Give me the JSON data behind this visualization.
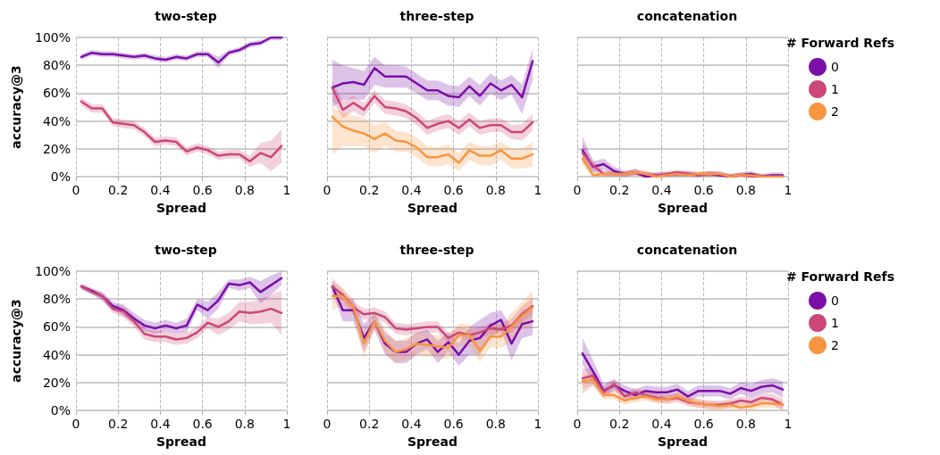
{
  "chart_data": [
    {
      "type": "line",
      "title": "two-step",
      "xlabel": "Spread",
      "ylabel": "accuracy@3",
      "xlim": [
        0,
        1
      ],
      "xticks": [
        0,
        0.2,
        0.4,
        0.6,
        0.8,
        1
      ],
      "ylim": [
        0,
        100
      ],
      "yticks": [
        {
          "value": 0,
          "label": "0%"
        },
        {
          "value": 20,
          "label": "20%"
        },
        {
          "value": 40,
          "label": "40%"
        },
        {
          "value": 60,
          "label": "60%"
        },
        {
          "value": 80,
          "label": "80%"
        },
        {
          "value": 100,
          "label": "100%"
        }
      ],
      "grid": true,
      "x": [
        0.025,
        0.075,
        0.125,
        0.175,
        0.225,
        0.275,
        0.325,
        0.375,
        0.425,
        0.475,
        0.525,
        0.575,
        0.625,
        0.675,
        0.725,
        0.775,
        0.825,
        0.875,
        0.925,
        0.975
      ],
      "series": [
        {
          "color": "#7b0fa8",
          "values": [
            86,
            89,
            88,
            88,
            87,
            86,
            87,
            85,
            84,
            86,
            85,
            88,
            88,
            82,
            89,
            91,
            95,
            96,
            100,
            100
          ],
          "upper": [
            88,
            91,
            90,
            90,
            89,
            88,
            89,
            87,
            86,
            88,
            87,
            90,
            90,
            86,
            91,
            93,
            97,
            98,
            100,
            100
          ],
          "lower": [
            84,
            87,
            86,
            86,
            85,
            84,
            85,
            83,
            82,
            84,
            83,
            86,
            86,
            78,
            87,
            89,
            93,
            94,
            98,
            98
          ]
        },
        {
          "color": "#cc4778",
          "values": [
            54,
            49,
            49,
            39,
            38,
            37,
            32,
            25,
            26,
            25,
            18,
            21,
            19,
            15,
            16,
            16,
            11,
            17,
            14,
            22
          ],
          "upper": [
            57,
            52,
            52,
            42,
            41,
            40,
            35,
            28,
            29,
            28,
            21,
            24,
            22,
            18,
            19,
            19,
            15,
            24,
            26,
            34
          ],
          "lower": [
            51,
            46,
            46,
            36,
            35,
            34,
            29,
            22,
            23,
            22,
            15,
            18,
            16,
            12,
            13,
            13,
            7,
            10,
            4,
            10
          ]
        }
      ]
    },
    {
      "type": "line",
      "title": "three-step",
      "xlabel": "Spread",
      "xlim": [
        0,
        1
      ],
      "xticks": [
        0,
        0.2,
        0.4,
        0.6,
        0.8,
        1
      ],
      "ylim": [
        0,
        100
      ],
      "yticks": [
        0,
        20,
        40,
        60,
        80,
        100
      ],
      "tick_labels": "x",
      "grid": true,
      "x": [
        0.025,
        0.075,
        0.125,
        0.175,
        0.225,
        0.275,
        0.325,
        0.375,
        0.425,
        0.475,
        0.525,
        0.575,
        0.625,
        0.675,
        0.725,
        0.775,
        0.825,
        0.875,
        0.925,
        0.975
      ],
      "series": [
        {
          "color": "#7b0fa8",
          "values": [
            64,
            67,
            68,
            66,
            78,
            72,
            72,
            72,
            67,
            62,
            62,
            58,
            57,
            65,
            58,
            67,
            62,
            66,
            57,
            83
          ],
          "upper": [
            84,
            80,
            78,
            76,
            86,
            80,
            80,
            79,
            74,
            69,
            69,
            66,
            65,
            72,
            66,
            74,
            69,
            73,
            66,
            92
          ],
          "lower": [
            50,
            55,
            56,
            55,
            66,
            64,
            64,
            64,
            60,
            55,
            55,
            51,
            50,
            58,
            51,
            60,
            55,
            59,
            45,
            69
          ]
        },
        {
          "color": "#cc4778",
          "values": [
            64,
            48,
            53,
            48,
            58,
            50,
            49,
            47,
            42,
            35,
            38,
            40,
            35,
            41,
            35,
            37,
            37,
            32,
            32,
            39
          ],
          "upper": [
            69,
            54,
            58,
            53,
            62,
            55,
            54,
            52,
            47,
            40,
            43,
            45,
            40,
            46,
            40,
            42,
            42,
            37,
            38,
            45
          ],
          "lower": [
            55,
            42,
            47,
            43,
            53,
            45,
            44,
            42,
            37,
            30,
            33,
            35,
            30,
            36,
            30,
            32,
            32,
            27,
            26,
            33
          ]
        },
        {
          "color": "#f89540",
          "values": [
            43,
            36,
            33,
            31,
            27,
            31,
            26,
            25,
            21,
            14,
            14,
            16,
            10,
            19,
            15,
            15,
            19,
            13,
            13,
            16
          ],
          "upper": [
            50,
            46,
            44,
            42,
            37,
            39,
            33,
            32,
            28,
            22,
            21,
            23,
            17,
            25,
            22,
            22,
            25,
            20,
            20,
            25
          ],
          "lower": [
            16,
            22,
            22,
            22,
            17,
            22,
            18,
            18,
            14,
            8,
            7,
            9,
            4,
            12,
            8,
            8,
            12,
            6,
            6,
            7
          ]
        }
      ]
    },
    {
      "type": "line",
      "title": "concatenation",
      "xlabel": "Spread",
      "legend_title": "# Forward Refs",
      "legend": "right",
      "xlim": [
        0,
        1
      ],
      "xticks": [
        0,
        0.2,
        0.4,
        0.6,
        0.8,
        1
      ],
      "ylim": [
        0,
        100
      ],
      "yticks": [
        0,
        20,
        40,
        60,
        80,
        100
      ],
      "tick_labels": "x",
      "grid": true,
      "x": [
        0.025,
        0.075,
        0.125,
        0.175,
        0.225,
        0.275,
        0.325,
        0.375,
        0.425,
        0.475,
        0.525,
        0.575,
        0.625,
        0.675,
        0.725,
        0.775,
        0.825,
        0.875,
        0.925,
        0.975
      ],
      "series": [
        {
          "name": "0",
          "color": "#7b0fa8",
          "values": [
            19,
            7,
            9,
            4,
            2,
            3,
            0,
            1,
            1,
            2,
            2,
            1,
            2,
            1,
            0,
            1,
            2,
            0,
            1,
            1
          ],
          "upper": [
            29,
            11,
            13,
            7,
            4,
            6,
            2,
            3,
            3,
            4,
            4,
            3,
            4,
            3,
            2,
            3,
            4,
            2,
            3,
            3
          ],
          "lower": [
            11,
            3,
            5,
            1,
            0,
            1,
            0,
            0,
            0,
            0,
            0,
            0,
            0,
            0,
            0,
            0,
            0,
            0,
            0,
            0
          ]
        },
        {
          "name": "1",
          "color": "#cc4778",
          "values": [
            17,
            8,
            2,
            2,
            2,
            3,
            2,
            1,
            2,
            3,
            2,
            1,
            2,
            2,
            0,
            1,
            0,
            0,
            0,
            0
          ],
          "upper": [
            24,
            12,
            4,
            4,
            4,
            5,
            4,
            3,
            4,
            5,
            4,
            3,
            4,
            4,
            2,
            3,
            2,
            2,
            2,
            2
          ],
          "lower": [
            10,
            4,
            0,
            0,
            0,
            1,
            0,
            0,
            0,
            1,
            0,
            0,
            0,
            0,
            0,
            0,
            0,
            0,
            0,
            0
          ]
        },
        {
          "name": "2",
          "color": "#f89540",
          "values": [
            13,
            1,
            2,
            2,
            2,
            3,
            2,
            0,
            1,
            2,
            1,
            2,
            2,
            2,
            0,
            1,
            1,
            0,
            0,
            0
          ],
          "upper": [
            18,
            3,
            4,
            4,
            4,
            5,
            4,
            2,
            3,
            4,
            3,
            4,
            4,
            4,
            2,
            3,
            3,
            2,
            2,
            2
          ],
          "lower": [
            8,
            0,
            0,
            0,
            0,
            1,
            0,
            0,
            0,
            0,
            0,
            0,
            0,
            0,
            0,
            0,
            0,
            0,
            0,
            0
          ]
        }
      ]
    },
    {
      "type": "line",
      "title": "two-step",
      "xlabel": "Spread",
      "ylabel": "accuracy@3",
      "xlim": [
        0,
        1
      ],
      "xticks": [
        0,
        0.2,
        0.4,
        0.6,
        0.8,
        1
      ],
      "ylim": [
        0,
        100
      ],
      "yticks": [
        {
          "value": 0,
          "label": "0%"
        },
        {
          "value": 20,
          "label": "20%"
        },
        {
          "value": 40,
          "label": "40%"
        },
        {
          "value": 60,
          "label": "60%"
        },
        {
          "value": 80,
          "label": "80%"
        },
        {
          "value": 100,
          "label": "100%"
        }
      ],
      "grid": true,
      "x": [
        0.025,
        0.075,
        0.125,
        0.175,
        0.225,
        0.275,
        0.325,
        0.375,
        0.425,
        0.475,
        0.525,
        0.575,
        0.625,
        0.675,
        0.725,
        0.775,
        0.825,
        0.875,
        0.925,
        0.975
      ],
      "series": [
        {
          "color": "#7b0fa8",
          "values": [
            89,
            86,
            82,
            75,
            72,
            66,
            61,
            59,
            61,
            59,
            61,
            76,
            72,
            79,
            91,
            90,
            92,
            85,
            90,
            95
          ],
          "upper": [
            91,
            88,
            85,
            78,
            76,
            70,
            65,
            63,
            65,
            63,
            66,
            80,
            78,
            85,
            94,
            94,
            96,
            93,
            97,
            100
          ],
          "lower": [
            87,
            84,
            79,
            72,
            68,
            62,
            57,
            55,
            57,
            55,
            56,
            72,
            66,
            73,
            88,
            86,
            88,
            77,
            83,
            90
          ]
        },
        {
          "color": "#cc4778",
          "values": [
            89,
            85,
            82,
            73,
            71,
            64,
            55,
            53,
            53,
            51,
            52,
            56,
            63,
            60,
            64,
            71,
            70,
            71,
            73,
            70
          ],
          "upper": [
            91,
            87,
            85,
            76,
            75,
            68,
            59,
            57,
            57,
            55,
            56,
            60,
            67,
            66,
            70,
            78,
            78,
            80,
            83,
            86
          ],
          "lower": [
            87,
            83,
            79,
            70,
            67,
            60,
            51,
            49,
            49,
            47,
            48,
            52,
            59,
            54,
            58,
            64,
            62,
            62,
            63,
            54
          ]
        }
      ]
    },
    {
      "type": "line",
      "title": "three-step",
      "xlabel": "Spread",
      "xlim": [
        0,
        1
      ],
      "xticks": [
        0,
        0.2,
        0.4,
        0.6,
        0.8,
        1
      ],
      "ylim": [
        0,
        100
      ],
      "yticks": [
        0,
        20,
        40,
        60,
        80,
        100
      ],
      "tick_labels": "x",
      "grid": true,
      "x": [
        0.025,
        0.075,
        0.125,
        0.175,
        0.225,
        0.275,
        0.325,
        0.375,
        0.425,
        0.475,
        0.525,
        0.575,
        0.625,
        0.675,
        0.725,
        0.775,
        0.825,
        0.875,
        0.925,
        0.975
      ],
      "series": [
        {
          "color": "#7b0fa8",
          "values": [
            89,
            72,
            72,
            52,
            64,
            48,
            42,
            42,
            48,
            51,
            42,
            49,
            40,
            50,
            52,
            61,
            65,
            48,
            62,
            64
          ],
          "upper": [
            93,
            80,
            80,
            62,
            70,
            56,
            50,
            50,
            56,
            58,
            50,
            56,
            48,
            60,
            65,
            70,
            72,
            60,
            72,
            74
          ],
          "lower": [
            85,
            64,
            64,
            42,
            58,
            40,
            34,
            34,
            40,
            44,
            34,
            42,
            32,
            40,
            40,
            52,
            58,
            36,
            52,
            54
          ]
        },
        {
          "color": "#cc4778",
          "values": [
            89,
            83,
            74,
            69,
            70,
            67,
            59,
            58,
            59,
            60,
            60,
            52,
            56,
            54,
            56,
            59,
            58,
            61,
            69,
            75
          ],
          "upper": [
            95,
            87,
            78,
            73,
            74,
            71,
            63,
            62,
            63,
            64,
            64,
            56,
            60,
            58,
            60,
            63,
            62,
            66,
            75,
            81
          ],
          "lower": [
            83,
            79,
            70,
            65,
            66,
            63,
            55,
            54,
            55,
            56,
            56,
            48,
            52,
            50,
            52,
            55,
            54,
            56,
            63,
            69
          ]
        },
        {
          "color": "#f89540",
          "values": [
            82,
            82,
            74,
            48,
            64,
            50,
            42,
            44,
            48,
            47,
            46,
            45,
            54,
            54,
            43,
            53,
            53,
            60,
            68,
            74
          ],
          "upper": [
            92,
            88,
            80,
            56,
            70,
            58,
            50,
            52,
            56,
            55,
            54,
            53,
            62,
            62,
            51,
            61,
            61,
            70,
            78,
            86
          ],
          "lower": [
            72,
            76,
            68,
            38,
            58,
            42,
            34,
            36,
            40,
            39,
            38,
            37,
            46,
            46,
            35,
            45,
            45,
            50,
            58,
            62
          ]
        }
      ]
    },
    {
      "type": "line",
      "title": "concatenation",
      "xlabel": "Spread",
      "legend_title": "# Forward Refs",
      "legend": "right",
      "xlim": [
        0,
        1
      ],
      "xticks": [
        0,
        0.2,
        0.4,
        0.6,
        0.8,
        1
      ],
      "ylim": [
        0,
        100
      ],
      "yticks": [
        0,
        20,
        40,
        60,
        80,
        100
      ],
      "tick_labels": "x",
      "grid": true,
      "x": [
        0.025,
        0.075,
        0.125,
        0.175,
        0.225,
        0.275,
        0.325,
        0.375,
        0.425,
        0.475,
        0.525,
        0.575,
        0.625,
        0.675,
        0.725,
        0.775,
        0.825,
        0.875,
        0.925,
        0.975
      ],
      "series": [
        {
          "name": "0",
          "color": "#7b0fa8",
          "values": [
            41,
            28,
            14,
            18,
            14,
            11,
            14,
            13,
            13,
            15,
            10,
            14,
            14,
            14,
            12,
            16,
            14,
            17,
            18,
            15
          ],
          "upper": [
            52,
            36,
            19,
            22,
            18,
            15,
            18,
            17,
            17,
            19,
            14,
            18,
            18,
            18,
            16,
            20,
            19,
            22,
            23,
            21
          ],
          "lower": [
            33,
            20,
            10,
            14,
            10,
            7,
            10,
            9,
            9,
            11,
            6,
            10,
            10,
            10,
            8,
            12,
            9,
            12,
            13,
            9
          ]
        },
        {
          "name": "1",
          "color": "#cc4778",
          "values": [
            23,
            25,
            13,
            19,
            10,
            13,
            11,
            9,
            8,
            9,
            6,
            5,
            4,
            4,
            5,
            7,
            6,
            9,
            8,
            4
          ],
          "upper": [
            30,
            30,
            17,
            23,
            13,
            16,
            14,
            12,
            11,
            12,
            9,
            8,
            7,
            7,
            8,
            10,
            9,
            12,
            12,
            8
          ],
          "lower": [
            12,
            18,
            9,
            15,
            7,
            10,
            8,
            6,
            5,
            6,
            3,
            2,
            1,
            1,
            2,
            4,
            3,
            6,
            4,
            0
          ]
        },
        {
          "name": "2",
          "color": "#f89540",
          "values": [
            21,
            22,
            11,
            11,
            7,
            9,
            10,
            8,
            8,
            10,
            7,
            5,
            4,
            3,
            4,
            2,
            3,
            5,
            5,
            4
          ],
          "upper": [
            26,
            26,
            14,
            14,
            10,
            12,
            13,
            11,
            11,
            13,
            10,
            8,
            7,
            6,
            7,
            5,
            6,
            8,
            8,
            7
          ],
          "lower": [
            16,
            18,
            8,
            8,
            4,
            6,
            7,
            5,
            5,
            7,
            4,
            2,
            1,
            0,
            1,
            0,
            0,
            2,
            2,
            1
          ]
        }
      ]
    }
  ]
}
